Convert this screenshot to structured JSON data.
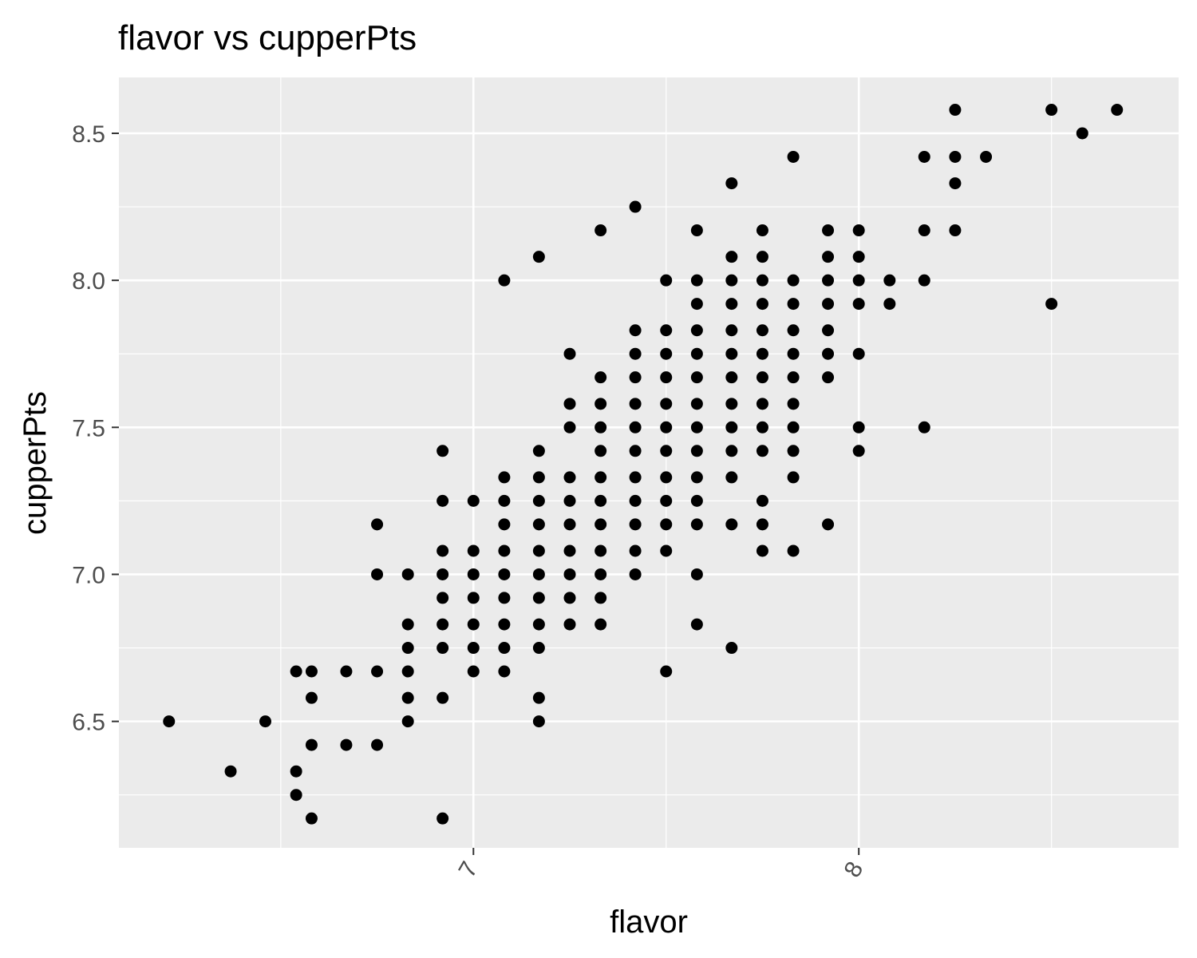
{
  "chart_data": {
    "type": "scatter",
    "title": "flavor vs cupperPts",
    "xlabel": "flavor",
    "ylabel": "cupperPts",
    "xlim": [
      6.08,
      8.83
    ],
    "ylim": [
      6.07,
      8.69
    ],
    "x_ticks": [
      7,
      8
    ],
    "x_tick_labels": [
      "7",
      "8"
    ],
    "y_ticks": [
      6.5,
      7.0,
      7.5,
      8.0,
      8.5
    ],
    "y_tick_labels": [
      "6.5",
      "7.0",
      "7.5",
      "8.0",
      "8.5"
    ],
    "grid": true,
    "legend": "none",
    "colors": {
      "panel_background": "#ebebeb",
      "grid_line": "#ffffff",
      "point": "#000000",
      "tick_label": "#4d4d4d",
      "text": "#000000"
    },
    "points": [
      [
        6.21,
        6.5
      ],
      [
        6.37,
        6.33
      ],
      [
        6.46,
        6.5
      ],
      [
        6.54,
        6.67
      ],
      [
        6.54,
        6.33
      ],
      [
        6.54,
        6.25
      ],
      [
        6.58,
        6.67
      ],
      [
        6.58,
        6.58
      ],
      [
        6.58,
        6.42
      ],
      [
        6.58,
        6.17
      ],
      [
        6.67,
        6.67
      ],
      [
        6.67,
        6.42
      ],
      [
        6.75,
        7.17
      ],
      [
        6.75,
        7.0
      ],
      [
        6.75,
        6.67
      ],
      [
        6.75,
        6.42
      ],
      [
        6.83,
        7.0
      ],
      [
        6.83,
        6.83
      ],
      [
        6.83,
        6.75
      ],
      [
        6.83,
        6.67
      ],
      [
        6.83,
        6.58
      ],
      [
        6.83,
        6.5
      ],
      [
        6.92,
        7.42
      ],
      [
        6.92,
        7.25
      ],
      [
        6.92,
        7.08
      ],
      [
        6.92,
        7.0
      ],
      [
        6.92,
        6.92
      ],
      [
        6.92,
        6.83
      ],
      [
        6.92,
        6.75
      ],
      [
        6.92,
        6.58
      ],
      [
        6.92,
        6.17
      ],
      [
        7.0,
        7.25
      ],
      [
        7.0,
        7.08
      ],
      [
        7.0,
        7.0
      ],
      [
        7.0,
        6.92
      ],
      [
        7.0,
        6.83
      ],
      [
        7.0,
        6.75
      ],
      [
        7.0,
        6.67
      ],
      [
        7.08,
        8.0
      ],
      [
        7.08,
        7.33
      ],
      [
        7.08,
        7.25
      ],
      [
        7.08,
        7.17
      ],
      [
        7.08,
        7.08
      ],
      [
        7.08,
        7.0
      ],
      [
        7.08,
        6.92
      ],
      [
        7.08,
        6.83
      ],
      [
        7.08,
        6.75
      ],
      [
        7.08,
        6.67
      ],
      [
        7.17,
        8.08
      ],
      [
        7.17,
        7.42
      ],
      [
        7.17,
        7.33
      ],
      [
        7.17,
        7.25
      ],
      [
        7.17,
        7.17
      ],
      [
        7.17,
        7.08
      ],
      [
        7.17,
        7.0
      ],
      [
        7.17,
        6.92
      ],
      [
        7.17,
        6.83
      ],
      [
        7.17,
        6.75
      ],
      [
        7.17,
        6.58
      ],
      [
        7.17,
        6.5
      ],
      [
        7.25,
        7.75
      ],
      [
        7.25,
        7.58
      ],
      [
        7.25,
        7.5
      ],
      [
        7.25,
        7.33
      ],
      [
        7.25,
        7.25
      ],
      [
        7.25,
        7.17
      ],
      [
        7.25,
        7.08
      ],
      [
        7.25,
        7.0
      ],
      [
        7.25,
        6.92
      ],
      [
        7.25,
        6.83
      ],
      [
        7.33,
        8.17
      ],
      [
        7.33,
        7.67
      ],
      [
        7.33,
        7.58
      ],
      [
        7.33,
        7.5
      ],
      [
        7.33,
        7.42
      ],
      [
        7.33,
        7.33
      ],
      [
        7.33,
        7.25
      ],
      [
        7.33,
        7.17
      ],
      [
        7.33,
        7.08
      ],
      [
        7.33,
        7.0
      ],
      [
        7.33,
        6.92
      ],
      [
        7.33,
        6.83
      ],
      [
        7.42,
        8.25
      ],
      [
        7.42,
        7.83
      ],
      [
        7.42,
        7.75
      ],
      [
        7.42,
        7.67
      ],
      [
        7.42,
        7.58
      ],
      [
        7.42,
        7.5
      ],
      [
        7.42,
        7.42
      ],
      [
        7.42,
        7.33
      ],
      [
        7.42,
        7.25
      ],
      [
        7.42,
        7.17
      ],
      [
        7.42,
        7.08
      ],
      [
        7.42,
        7.0
      ],
      [
        7.5,
        8.0
      ],
      [
        7.5,
        7.83
      ],
      [
        7.5,
        7.75
      ],
      [
        7.5,
        7.67
      ],
      [
        7.5,
        7.58
      ],
      [
        7.5,
        7.5
      ],
      [
        7.5,
        7.42
      ],
      [
        7.5,
        7.33
      ],
      [
        7.5,
        7.25
      ],
      [
        7.5,
        7.17
      ],
      [
        7.5,
        7.08
      ],
      [
        7.5,
        6.67
      ],
      [
        7.58,
        8.17
      ],
      [
        7.58,
        8.0
      ],
      [
        7.58,
        7.92
      ],
      [
        7.58,
        7.83
      ],
      [
        7.58,
        7.75
      ],
      [
        7.58,
        7.67
      ],
      [
        7.58,
        7.58
      ],
      [
        7.58,
        7.5
      ],
      [
        7.58,
        7.42
      ],
      [
        7.58,
        7.33
      ],
      [
        7.58,
        7.25
      ],
      [
        7.58,
        7.17
      ],
      [
        7.58,
        7.0
      ],
      [
        7.58,
        6.83
      ],
      [
        7.67,
        8.33
      ],
      [
        7.67,
        8.08
      ],
      [
        7.67,
        8.0
      ],
      [
        7.67,
        7.92
      ],
      [
        7.67,
        7.83
      ],
      [
        7.67,
        7.75
      ],
      [
        7.67,
        7.67
      ],
      [
        7.67,
        7.58
      ],
      [
        7.67,
        7.5
      ],
      [
        7.67,
        7.42
      ],
      [
        7.67,
        7.33
      ],
      [
        7.67,
        7.17
      ],
      [
        7.67,
        6.75
      ],
      [
        7.75,
        8.17
      ],
      [
        7.75,
        8.08
      ],
      [
        7.75,
        8.0
      ],
      [
        7.75,
        7.92
      ],
      [
        7.75,
        7.83
      ],
      [
        7.75,
        7.75
      ],
      [
        7.75,
        7.67
      ],
      [
        7.75,
        7.58
      ],
      [
        7.75,
        7.5
      ],
      [
        7.75,
        7.42
      ],
      [
        7.75,
        7.25
      ],
      [
        7.75,
        7.17
      ],
      [
        7.75,
        7.08
      ],
      [
        7.83,
        8.42
      ],
      [
        7.83,
        8.0
      ],
      [
        7.83,
        7.92
      ],
      [
        7.83,
        7.83
      ],
      [
        7.83,
        7.75
      ],
      [
        7.83,
        7.67
      ],
      [
        7.83,
        7.58
      ],
      [
        7.83,
        7.5
      ],
      [
        7.83,
        7.42
      ],
      [
        7.83,
        7.33
      ],
      [
        7.83,
        7.08
      ],
      [
        7.92,
        8.17
      ],
      [
        7.92,
        8.08
      ],
      [
        7.92,
        8.0
      ],
      [
        7.92,
        7.92
      ],
      [
        7.92,
        7.83
      ],
      [
        7.92,
        7.75
      ],
      [
        7.92,
        7.67
      ],
      [
        7.92,
        7.17
      ],
      [
        8.0,
        8.17
      ],
      [
        8.0,
        8.08
      ],
      [
        8.0,
        8.0
      ],
      [
        8.0,
        7.92
      ],
      [
        8.0,
        7.75
      ],
      [
        8.0,
        7.5
      ],
      [
        8.0,
        7.42
      ],
      [
        8.08,
        8.0
      ],
      [
        8.08,
        7.92
      ],
      [
        8.17,
        8.42
      ],
      [
        8.17,
        8.17
      ],
      [
        8.17,
        8.0
      ],
      [
        8.17,
        7.5
      ],
      [
        8.25,
        8.58
      ],
      [
        8.25,
        8.42
      ],
      [
        8.25,
        8.33
      ],
      [
        8.25,
        8.17
      ],
      [
        8.33,
        8.42
      ],
      [
        8.5,
        8.58
      ],
      [
        8.5,
        7.92
      ],
      [
        8.58,
        8.5
      ],
      [
        8.67,
        8.58
      ]
    ]
  }
}
